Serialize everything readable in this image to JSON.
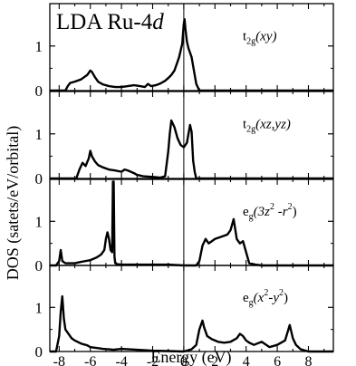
{
  "chart_data": [
    {
      "type": "line",
      "title": "LDA Ru-4d",
      "title_plain": "LDA Ru-4",
      "title_italic": "d",
      "orbital": {
        "main": "t",
        "sub": "2g",
        "rest": "(xy)"
      },
      "xlim": [
        -8.6,
        9.6
      ],
      "ylim": [
        0,
        1.95
      ],
      "yticks": [
        0,
        1
      ],
      "series": [
        {
          "x": [
            -8.6,
            -8.0,
            -7.6,
            -7.45,
            -7.3,
            -7.0,
            -6.6,
            -6.2,
            -6.0,
            -5.9,
            -5.7,
            -5.5,
            -5.2,
            -4.8,
            -4.4,
            -4.0,
            -3.6,
            -3.2,
            -2.8,
            -2.5,
            -2.3,
            -2.1,
            -1.8,
            -1.5,
            -1.2,
            -1.0,
            -0.8,
            -0.6,
            -0.45,
            -0.3,
            -0.2,
            -0.1,
            0.0,
            0.05,
            0.1,
            0.2,
            0.3,
            0.4,
            0.5,
            0.6,
            0.7,
            0.8,
            1.0,
            9.6
          ],
          "y": [
            0,
            0,
            0,
            0.1,
            0.17,
            0.2,
            0.25,
            0.35,
            0.45,
            0.42,
            0.3,
            0.2,
            0.14,
            0.1,
            0.08,
            0.08,
            0.1,
            0.12,
            0.1,
            0.08,
            0.15,
            0.1,
            0.12,
            0.16,
            0.22,
            0.28,
            0.35,
            0.45,
            0.6,
            0.75,
            0.9,
            1.05,
            1.5,
            1.6,
            1.4,
            1.1,
            0.95,
            0.85,
            0.75,
            0.55,
            0.35,
            0.15,
            0,
            0
          ]
        }
      ]
    },
    {
      "type": "line",
      "orbital": {
        "main": "t",
        "sub": "2g",
        "rest": "(xz,yz)"
      },
      "xlim": [
        -8.6,
        9.6
      ],
      "ylim": [
        0,
        1.95
      ],
      "yticks": [
        0,
        1
      ],
      "series": [
        {
          "x": [
            -8.6,
            -6.9,
            -6.7,
            -6.5,
            -6.3,
            -6.1,
            -6.0,
            -5.9,
            -5.7,
            -5.5,
            -5.2,
            -4.8,
            -4.4,
            -4.0,
            -3.8,
            -3.6,
            -3.4,
            -3.2,
            -3.0,
            -2.6,
            -2.2,
            -1.8,
            -1.5,
            -1.2,
            -1.0,
            -0.9,
            -0.8,
            -0.6,
            -0.4,
            -0.2,
            0.0,
            0.2,
            0.3,
            0.4,
            0.5,
            0.6,
            0.7,
            0.8,
            9.6
          ],
          "y": [
            0,
            0,
            0.2,
            0.35,
            0.28,
            0.45,
            0.62,
            0.5,
            0.38,
            0.3,
            0.25,
            0.2,
            0.18,
            0.15,
            0.2,
            0.18,
            0.15,
            0.12,
            0.08,
            0.05,
            0.04,
            0.03,
            0.02,
            0.05,
            0.6,
            1.0,
            1.3,
            1.15,
            0.9,
            0.75,
            0.7,
            0.8,
            1.0,
            1.2,
            1.05,
            0.4,
            0.15,
            0,
            0
          ]
        }
      ]
    },
    {
      "type": "line",
      "orbital": {
        "main": "e",
        "sub": "g",
        "rest": "(3z",
        "sup1": "2",
        "mid": " -r",
        "sup2": "2",
        "end": ")"
      },
      "xlim": [
        -8.6,
        9.6
      ],
      "ylim": [
        0,
        1.95
      ],
      "yticks": [
        0,
        1
      ],
      "series": [
        {
          "x": [
            -8.6,
            -8.2,
            -8.0,
            -7.9,
            -7.8,
            -7.6,
            -7.0,
            -6.6,
            -6.3,
            -6.0,
            -5.6,
            -5.3,
            -5.1,
            -5.0,
            -4.9,
            -4.8,
            -4.7,
            -4.6,
            -4.55,
            -4.5,
            -4.45,
            -4.4,
            -4.35,
            -4.3,
            -4.0,
            -3.0,
            -2.0,
            -1.0,
            0.0,
            0.8,
            1.0,
            1.2,
            1.4,
            1.6,
            1.8,
            2.0,
            2.4,
            2.8,
            3.0,
            3.2,
            3.4,
            3.6,
            3.8,
            4.0,
            4.2,
            4.6,
            5.0,
            9.6
          ],
          "y": [
            0,
            0,
            0.1,
            0.35,
            0.1,
            0.05,
            0.05,
            0.08,
            0.1,
            0.12,
            0.18,
            0.25,
            0.35,
            0.6,
            0.75,
            0.6,
            0.35,
            0.3,
            1.9,
            1.9,
            0.2,
            0.05,
            0.05,
            0.03,
            0.02,
            0.02,
            0.02,
            0.02,
            0,
            0,
            0.1,
            0.45,
            0.6,
            0.5,
            0.55,
            0.6,
            0.65,
            0.7,
            0.8,
            1.05,
            0.6,
            0.5,
            0.55,
            0.3,
            0.05,
            0.02,
            0,
            0
          ]
        }
      ]
    },
    {
      "type": "line",
      "xlabel": "Energy (eV)",
      "orbital": {
        "main": "e",
        "sub": "g",
        "rest": "(x",
        "sup1": "2",
        "mid": "-y",
        "sup2": "2",
        "end": ")"
      },
      "xlim": [
        -8.6,
        9.6
      ],
      "ylim": [
        0,
        1.95
      ],
      "yticks": [
        0,
        1
      ],
      "xticks": [
        -8,
        -6,
        -4,
        -2,
        0,
        2,
        4,
        6,
        8
      ],
      "series": [
        {
          "x": [
            -8.6,
            -8.2,
            -8.0,
            -7.9,
            -7.8,
            -7.7,
            -7.6,
            -7.4,
            -7.2,
            -7.0,
            -6.6,
            -6.2,
            -6.0,
            -5.6,
            -5.2,
            -4.8,
            -4.5,
            -4.0,
            -3.5,
            -3.0,
            -2.5,
            -2.0,
            -1.0,
            0.0,
            0.5,
            0.8,
            1.0,
            1.2,
            1.3,
            1.5,
            1.8,
            2.2,
            2.6,
            3.0,
            3.4,
            3.6,
            3.8,
            4.0,
            4.2,
            4.5,
            5.0,
            5.5,
            6.0,
            6.5,
            6.8,
            7.0,
            7.2,
            7.5,
            8.0,
            9.6
          ],
          "y": [
            0,
            0,
            0.35,
            0.9,
            1.25,
            0.75,
            0.5,
            0.4,
            0.3,
            0.25,
            0.18,
            0.14,
            0.1,
            0.08,
            0.06,
            0.05,
            0.04,
            0.06,
            0.05,
            0.04,
            0.03,
            0.02,
            0.01,
            0,
            0.05,
            0.15,
            0.5,
            0.7,
            0.55,
            0.35,
            0.28,
            0.22,
            0.2,
            0.22,
            0.3,
            0.4,
            0.35,
            0.25,
            0.2,
            0.15,
            0.22,
            0.1,
            0.15,
            0.25,
            0.6,
            0.3,
            0.15,
            0.05,
            0,
            0
          ]
        }
      ]
    }
  ],
  "axis": {
    "ylabel": "DOS (satets/eV/orbital)",
    "xlabel": "Energy (eV)"
  }
}
